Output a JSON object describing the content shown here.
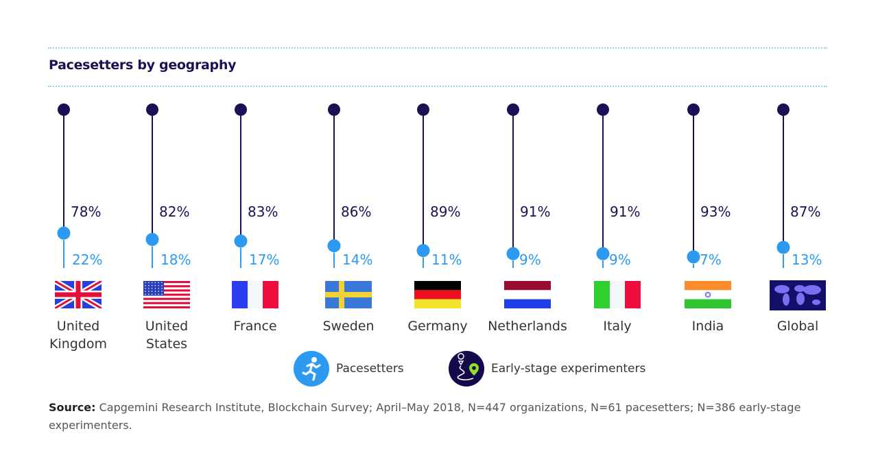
{
  "title": "Pacesetters by geography",
  "colors": {
    "early_stage": "#1a1054",
    "pacesetters": "#2b9af0",
    "rule": "#8fd6e4"
  },
  "chart_data": {
    "type": "lollipop",
    "title": "Pacesetters by geography",
    "categories": [
      "United Kingdom",
      "United States",
      "France",
      "Sweden",
      "Germany",
      "Netherlands",
      "Italy",
      "India",
      "Global"
    ],
    "series": [
      {
        "name": "Early-stage experimenters",
        "values": [
          78,
          82,
          83,
          86,
          89,
          91,
          91,
          93,
          87
        ]
      },
      {
        "name": "Pacesetters",
        "values": [
          22,
          18,
          17,
          14,
          11,
          9,
          9,
          7,
          13
        ]
      }
    ],
    "unit": "%",
    "ylim": [
      0,
      100
    ],
    "grid": false,
    "legend": "bottom-center"
  },
  "countries": [
    {
      "line1": "United",
      "line2": "Kingdom",
      "flag": "uk-flag"
    },
    {
      "line1": "United",
      "line2": "States",
      "flag": "us-flag"
    },
    {
      "line1": "France",
      "line2": "",
      "flag": "france-flag"
    },
    {
      "line1": "Sweden",
      "line2": "",
      "flag": "sweden-flag"
    },
    {
      "line1": "Germany",
      "line2": "",
      "flag": "germany-flag"
    },
    {
      "line1": "Netherlands",
      "line2": "",
      "flag": "netherlands-flag"
    },
    {
      "line1": "Italy",
      "line2": "",
      "flag": "italy-flag"
    },
    {
      "line1": "India",
      "line2": "",
      "flag": "india-flag"
    },
    {
      "line1": "Global",
      "line2": "",
      "flag": "world-map-icon"
    }
  ],
  "labels": {
    "dark": [
      "78%",
      "82%",
      "83%",
      "86%",
      "89%",
      "91%",
      "91%",
      "93%",
      "87%"
    ],
    "light": [
      "22%",
      "18%",
      "17%",
      "14%",
      "11%",
      "9%",
      "9%",
      "7%",
      "13%"
    ]
  },
  "legend": {
    "pacesetters": {
      "label": "Pacesetters",
      "icon": "running-person-icon"
    },
    "early_stage": {
      "label": "Early-stage experimenters",
      "icon": "route-map-pin-icon"
    }
  },
  "source": {
    "bold": "Source:",
    "text": " Capgemini Research Institute, Blockchain Survey; April–May 2018, N=447 organizations, N=61 pacesetters; N=386 early-stage experimenters."
  }
}
